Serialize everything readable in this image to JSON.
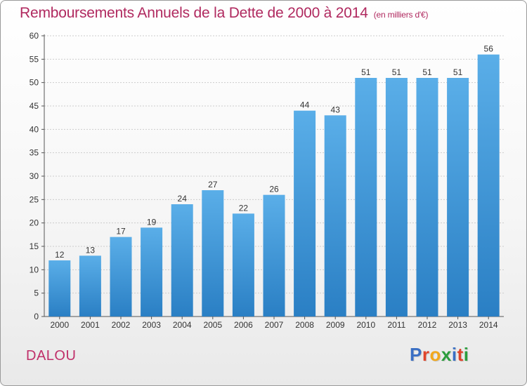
{
  "chart_data": {
    "type": "bar",
    "title": "Remboursements Annuels de la Dette de 2000 à 2014",
    "subtitle": "(en milliers d'€)",
    "categories": [
      "2000",
      "2001",
      "2002",
      "2003",
      "2004",
      "2005",
      "2006",
      "2007",
      "2008",
      "2009",
      "2010",
      "2011",
      "2012",
      "2013",
      "2014"
    ],
    "values": [
      12,
      13,
      17,
      19,
      24,
      27,
      22,
      26,
      44,
      43,
      51,
      51,
      51,
      51,
      56
    ],
    "ylim": [
      0,
      60
    ],
    "yticks": [
      0,
      5,
      10,
      15,
      20,
      25,
      30,
      35,
      40,
      45,
      50,
      55,
      60
    ],
    "grid": true,
    "bar_color": "#3f97d8"
  },
  "place": "DALOU",
  "logo": {
    "text": "Proxiti",
    "colors": [
      "#3a6fc4",
      "#e0442b",
      "#f2a81c",
      "#2a9d3c",
      "#3a6fc4",
      "#e0442b",
      "#2a9d3c"
    ]
  }
}
